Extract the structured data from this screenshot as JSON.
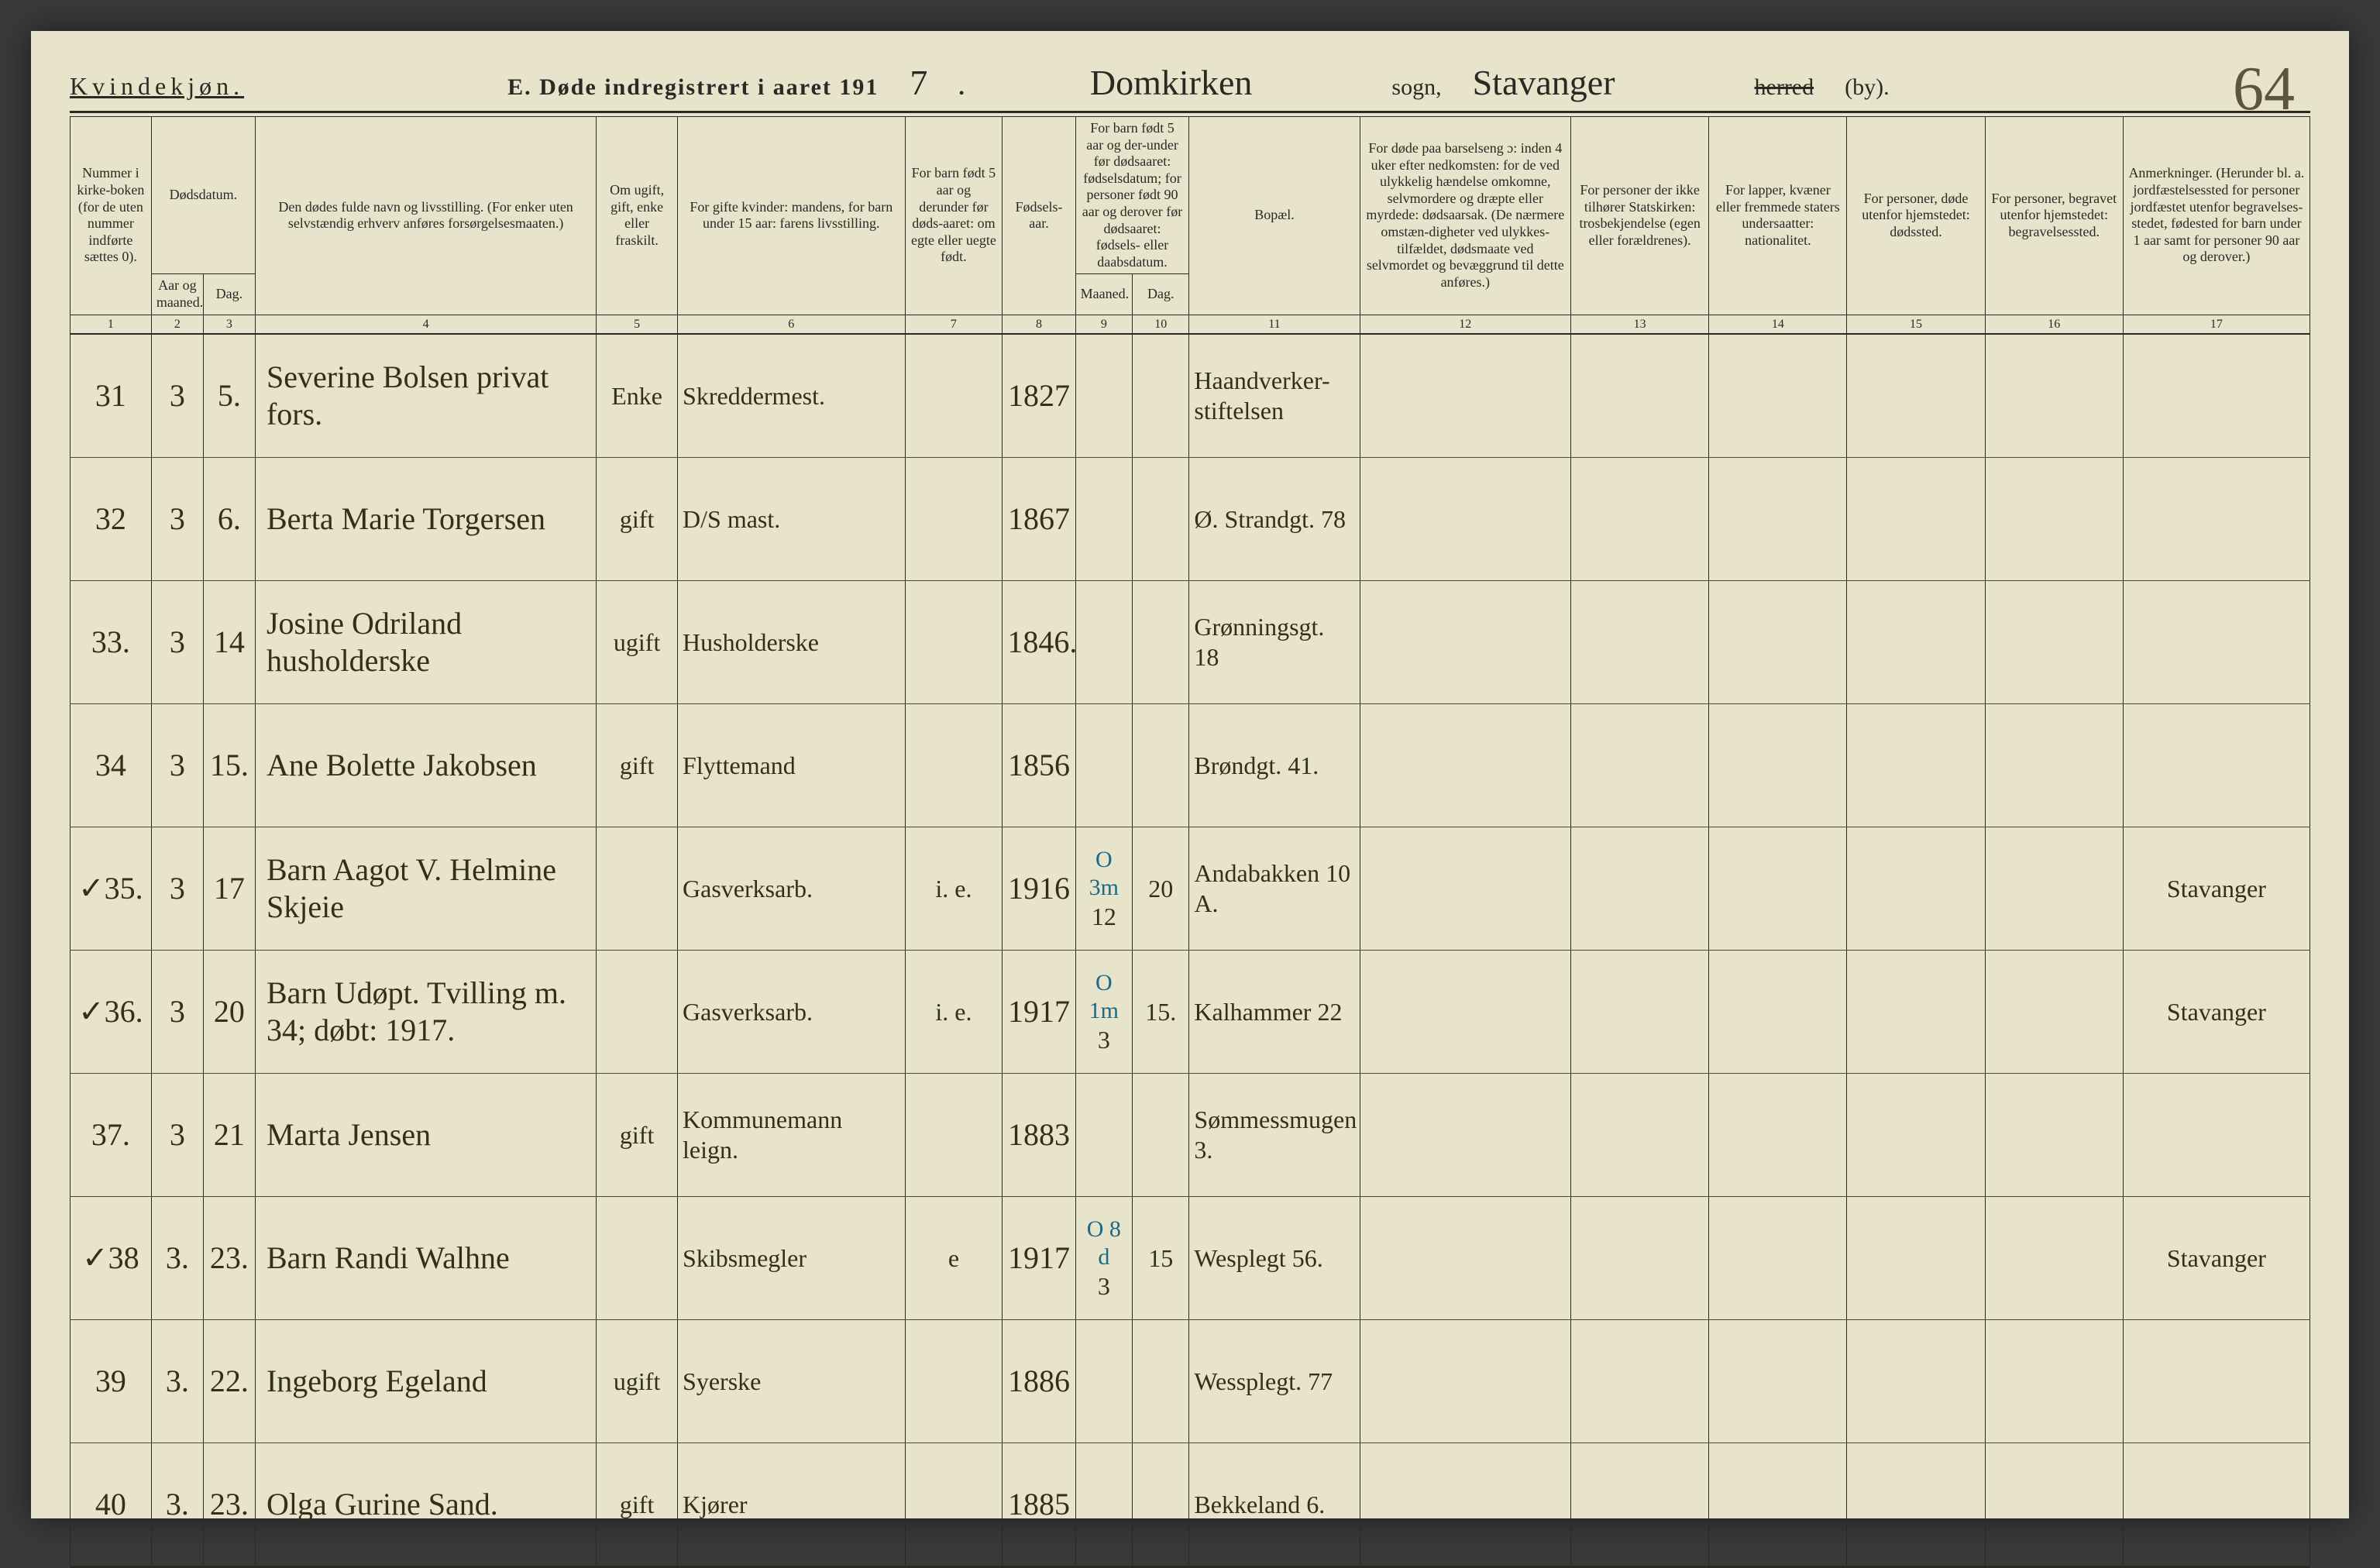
{
  "page_number_handwritten": "64",
  "header": {
    "gender": "Kvindekjøn.",
    "title_prefix": "E.  Døde indregistrert i aaret 191",
    "year_digit": "7",
    "title_suffix": ".",
    "parish_hand": "Domkirken",
    "sogn_label": "sogn,",
    "district_hand": "Stavanger",
    "herred_strike": "herred",
    "by_label": "(by)."
  },
  "columns": {
    "1": "Nummer i kirke-boken (for de uten nummer indførte sættes 0).",
    "2_group": "Dødsdatum.",
    "2": "Aar og maaned.",
    "3": "Dag.",
    "4": "Den dødes fulde navn og livsstilling. (For enker uten selvstændig erhverv anføres forsørgelsesmaaten.)",
    "5": "Om ugift, gift, enke eller fraskilt.",
    "6": "For gifte kvinder: mandens, for barn under 15 aar: farens livsstilling.",
    "7": "For barn født 5 aar og derunder før døds-aaret: om egte eller uegte født.",
    "8": "Fødsels-aar.",
    "9_10_group": "For barn født 5 aar og der-under før dødsaaret: fødselsdatum; for personer født 90 aar og derover før dødsaaret: fødsels- eller daabsdatum.",
    "9": "Maaned.",
    "10": "Dag.",
    "11": "Bopæl.",
    "12": "For døde paa barselseng ɔ: inden 4 uker efter nedkomsten: for de ved ulykkelig hændelse omkomne, selvmordere og dræpte eller myrdede: dødsaarsak. (De nærmere omstæn-digheter ved ulykkes-tilfældet, dødsmaate ved selvmordet og bevæggrund til dette anføres.)",
    "13": "For personer der ikke tilhører Statskirken: trosbekjendelse (egen eller forældrenes).",
    "14": "For lapper, kvæner eller fremmede staters undersaatter: nationalitet.",
    "15": "For personer, døde utenfor hjemstedet: dødssted.",
    "16": "For personer, begravet utenfor hjemstedet: begravelsessted.",
    "17": "Anmerkninger. (Herunder bl. a. jordfæstelsessted for personer jordfæstet utenfor begravelses-stedet, fødested for barn under 1 aar samt for personer 90 aar og derover.)"
  },
  "colnums": [
    "1",
    "2",
    "3",
    "4",
    "5",
    "6",
    "7",
    "8",
    "9",
    "10",
    "11",
    "12",
    "13",
    "14",
    "15",
    "16",
    "17"
  ],
  "rows": [
    {
      "no": "31",
      "month": "3",
      "day": "5.",
      "name": "Severine Bolsen   privat fors.",
      "status": "Enke",
      "occupation": "Skreddermest.",
      "egte": "",
      "birthyear": "1827",
      "bmonth": "",
      "bday": "",
      "residence": "Haandverker-stiftelsen",
      "col17": ""
    },
    {
      "no": "32",
      "month": "3",
      "day": "6.",
      "name": "Berta Marie Torgersen",
      "status": "gift",
      "occupation": "D/S mast.",
      "egte": "",
      "birthyear": "1867",
      "bmonth": "",
      "bday": "",
      "residence": "Ø. Strandgt. 78",
      "col17": ""
    },
    {
      "no": "33.",
      "month": "3",
      "day": "14",
      "name": "Josine Odriland   husholderske",
      "status": "ugift",
      "occupation": "Husholderske",
      "egte": "",
      "birthyear": "1846.",
      "bmonth": "",
      "bday": "",
      "residence": "Grønningsgt. 18",
      "col17": ""
    },
    {
      "no": "34",
      "month": "3",
      "day": "15.",
      "name": "Ane Bolette Jakobsen",
      "status": "gift",
      "occupation": "Flyttemand",
      "egte": "",
      "birthyear": "1856",
      "bmonth": "",
      "bday": "",
      "residence": "Brøndgt. 41.",
      "col17": ""
    },
    {
      "no": "✓35.",
      "month": "3",
      "day": "17",
      "name": "Barn  Aagot V. Helmine Skjeie",
      "status": "",
      "occupation": "Gasverksarb.",
      "egte": "i. e.",
      "birthyear": "1916",
      "bmonth": "12",
      "bday": "20",
      "overwrite": "O 3m",
      "residence": "Andabakken 10 A.",
      "col17": "Stavanger"
    },
    {
      "no": "✓36.",
      "month": "3",
      "day": "20",
      "name": "Barn  Udøpt.  Tvilling m. 34; døbt: 1917.",
      "status": "",
      "occupation": "Gasverksarb.",
      "egte": "i. e.",
      "birthyear": "1917",
      "bmonth": "3",
      "bday": "15.",
      "overwrite": "O 1m",
      "residence": "Kalhammer 22",
      "col17": "Stavanger"
    },
    {
      "no": "37.",
      "month": "3",
      "day": "21",
      "name": "Marta Jensen",
      "status": "gift",
      "occupation": "Kommunemann leign.",
      "egte": "",
      "birthyear": "1883",
      "bmonth": "",
      "bday": "",
      "residence": "Sømmessmugen 3.",
      "col17": ""
    },
    {
      "no": "✓38",
      "month": "3.",
      "day": "23.",
      "name": "Barn  Randi Walhne",
      "status": "",
      "occupation": "Skibsmegler",
      "egte": "e",
      "birthyear": "1917",
      "bmonth": "3",
      "bday": "15",
      "overwrite": "O 8 d",
      "residence": "Wesplegt 56.",
      "col17": "Stavanger"
    },
    {
      "no": "39",
      "month": "3.",
      "day": "22.",
      "name": "Ingeborg Egeland",
      "status": "ugift",
      "occupation": "Syerske",
      "egte": "",
      "birthyear": "1886",
      "bmonth": "",
      "bday": "",
      "residence": "Wessplegt. 77",
      "col17": ""
    },
    {
      "no": "40",
      "month": "3.",
      "day": "23.",
      "name": "Olga Gurine Sand.",
      "status": "gift",
      "occupation": "Kjører",
      "egte": "",
      "birthyear": "1885",
      "bmonth": "",
      "bday": "",
      "residence": "Bekkeland 6.",
      "col17": ""
    }
  ]
}
